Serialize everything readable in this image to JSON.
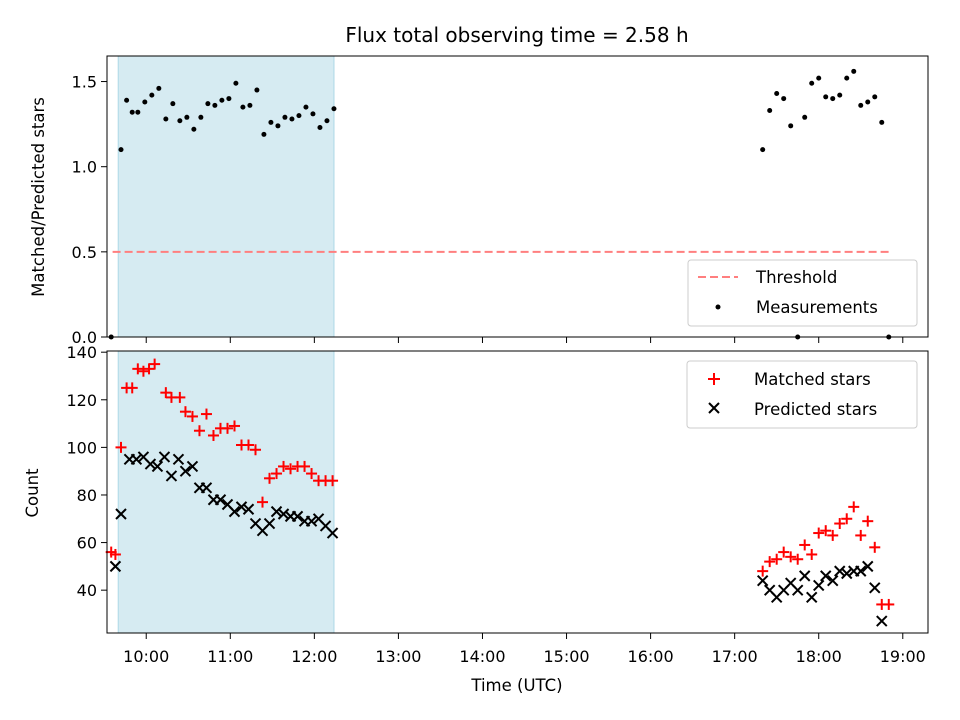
{
  "chart_data": [
    {
      "type": "scatter",
      "title": "Flux total observing time = 2.58 h",
      "xlabel": "",
      "ylabel": "Matched/Predicted stars",
      "xlim": [
        "09:32",
        "19:18"
      ],
      "ylim": [
        0,
        1.65
      ],
      "yticks": [
        {
          "value": 0.0,
          "label": "0.0"
        },
        {
          "value": 0.5,
          "label": "0.5"
        },
        {
          "value": 1.0,
          "label": "1.0"
        },
        {
          "value": 1.5,
          "label": "1.5"
        }
      ],
      "x_tick_marks": [
        "10:00",
        "11:00",
        "12:00",
        "13:00",
        "14:00",
        "15:00",
        "16:00",
        "17:00",
        "18:00",
        "19:00"
      ],
      "shaded_region": {
        "x0": "09:40",
        "x1": "12:14",
        "color": "#add8e6"
      },
      "legend_position": "lower-right",
      "grid": false,
      "series": [
        {
          "name": "Threshold",
          "style": "dashed-line",
          "color": "#ff7f7f",
          "points": [
            [
              "09:36",
              0.5
            ],
            [
              "18:50",
              0.5
            ]
          ]
        },
        {
          "name": "Measurements",
          "style": "dot",
          "color": "#000000",
          "points": [
            [
              "09:35",
              0.0
            ],
            [
              "09:42",
              1.1
            ],
            [
              "09:46",
              1.39
            ],
            [
              "09:50",
              1.32
            ],
            [
              "09:54",
              1.32
            ],
            [
              "09:59",
              1.38
            ],
            [
              "10:04",
              1.42
            ],
            [
              "10:09",
              1.46
            ],
            [
              "10:14",
              1.28
            ],
            [
              "10:19",
              1.37
            ],
            [
              "10:24",
              1.27
            ],
            [
              "10:29",
              1.29
            ],
            [
              "10:34",
              1.22
            ],
            [
              "10:39",
              1.29
            ],
            [
              "10:44",
              1.37
            ],
            [
              "10:49",
              1.36
            ],
            [
              "10:54",
              1.39
            ],
            [
              "10:59",
              1.4
            ],
            [
              "11:04",
              1.49
            ],
            [
              "11:09",
              1.35
            ],
            [
              "11:14",
              1.36
            ],
            [
              "11:19",
              1.45
            ],
            [
              "11:24",
              1.19
            ],
            [
              "11:29",
              1.26
            ],
            [
              "11:34",
              1.24
            ],
            [
              "11:39",
              1.29
            ],
            [
              "11:44",
              1.28
            ],
            [
              "11:49",
              1.3
            ],
            [
              "11:54",
              1.35
            ],
            [
              "11:59",
              1.31
            ],
            [
              "12:04",
              1.23
            ],
            [
              "12:09",
              1.27
            ],
            [
              "12:14",
              1.34
            ],
            [
              "17:20",
              1.1
            ],
            [
              "17:25",
              1.33
            ],
            [
              "17:30",
              1.43
            ],
            [
              "17:35",
              1.4
            ],
            [
              "17:40",
              1.24
            ],
            [
              "17:45",
              0.0
            ],
            [
              "17:50",
              1.29
            ],
            [
              "17:55",
              1.49
            ],
            [
              "18:00",
              1.52
            ],
            [
              "18:05",
              1.41
            ],
            [
              "18:10",
              1.4
            ],
            [
              "18:15",
              1.42
            ],
            [
              "18:20",
              1.52
            ],
            [
              "18:25",
              1.56
            ],
            [
              "18:30",
              1.36
            ],
            [
              "18:35",
              1.38
            ],
            [
              "18:40",
              1.41
            ],
            [
              "18:45",
              1.26
            ],
            [
              "18:50",
              0.0
            ]
          ]
        }
      ]
    },
    {
      "type": "scatter",
      "title": "",
      "xlabel": "Time (UTC)",
      "ylabel": "Count",
      "xlim": [
        "09:32",
        "19:18"
      ],
      "ylim": [
        22,
        140.5
      ],
      "yticks": [
        {
          "value": 40,
          "label": "40"
        },
        {
          "value": 60,
          "label": "60"
        },
        {
          "value": 80,
          "label": "80"
        },
        {
          "value": 100,
          "label": "100"
        },
        {
          "value": 120,
          "label": "120"
        },
        {
          "value": 140,
          "label": "140"
        }
      ],
      "xticks": [
        {
          "value": "10:00",
          "label": "10:00"
        },
        {
          "value": "11:00",
          "label": "11:00"
        },
        {
          "value": "12:00",
          "label": "12:00"
        },
        {
          "value": "13:00",
          "label": "13:00"
        },
        {
          "value": "14:00",
          "label": "14:00"
        },
        {
          "value": "15:00",
          "label": "15:00"
        },
        {
          "value": "16:00",
          "label": "16:00"
        },
        {
          "value": "17:00",
          "label": "17:00"
        },
        {
          "value": "18:00",
          "label": "18:00"
        },
        {
          "value": "19:00",
          "label": "19:00"
        }
      ],
      "shaded_region": {
        "x0": "09:40",
        "x1": "12:14",
        "color": "#add8e6"
      },
      "legend_position": "upper-right",
      "grid": false,
      "series": [
        {
          "name": "Matched stars",
          "style": "plus",
          "color": "#ff0000",
          "points": [
            [
              "09:35",
              56
            ],
            [
              "09:38",
              55
            ],
            [
              "09:42",
              100
            ],
            [
              "09:46",
              125
            ],
            [
              "09:50",
              125
            ],
            [
              "09:54",
              133
            ],
            [
              "09:58",
              132
            ],
            [
              "10:02",
              133
            ],
            [
              "10:06",
              135
            ],
            [
              "10:14",
              123
            ],
            [
              "10:18",
              121
            ],
            [
              "10:24",
              121
            ],
            [
              "10:28",
              115
            ],
            [
              "10:33",
              113
            ],
            [
              "10:38",
              107
            ],
            [
              "10:43",
              114
            ],
            [
              "10:48",
              105
            ],
            [
              "10:53",
              108
            ],
            [
              "10:58",
              108
            ],
            [
              "11:03",
              109
            ],
            [
              "11:08",
              101
            ],
            [
              "11:13",
              101
            ],
            [
              "11:18",
              99
            ],
            [
              "11:23",
              77
            ],
            [
              "11:28",
              87
            ],
            [
              "11:33",
              89
            ],
            [
              "11:38",
              92
            ],
            [
              "11:43",
              91
            ],
            [
              "11:48",
              92
            ],
            [
              "11:53",
              92
            ],
            [
              "11:58",
              89
            ],
            [
              "12:03",
              86
            ],
            [
              "12:08",
              86
            ],
            [
              "12:13",
              86
            ],
            [
              "17:20",
              48
            ],
            [
              "17:25",
              52
            ],
            [
              "17:30",
              53
            ],
            [
              "17:35",
              56
            ],
            [
              "17:40",
              54
            ],
            [
              "17:45",
              53
            ],
            [
              "17:50",
              59
            ],
            [
              "17:55",
              55
            ],
            [
              "18:00",
              64
            ],
            [
              "18:05",
              65
            ],
            [
              "18:10",
              63
            ],
            [
              "18:15",
              68
            ],
            [
              "18:20",
              70
            ],
            [
              "18:25",
              75
            ],
            [
              "18:30",
              63
            ],
            [
              "18:35",
              69
            ],
            [
              "18:40",
              58
            ],
            [
              "18:45",
              34
            ],
            [
              "18:50",
              34
            ]
          ]
        },
        {
          "name": "Predicted stars",
          "style": "x",
          "color": "#000000",
          "points": [
            [
              "09:38",
              50
            ],
            [
              "09:42",
              72
            ],
            [
              "09:48",
              95
            ],
            [
              "09:53",
              95
            ],
            [
              "09:58",
              96
            ],
            [
              "10:03",
              93
            ],
            [
              "10:08",
              92
            ],
            [
              "10:13",
              96
            ],
            [
              "10:18",
              88
            ],
            [
              "10:23",
              95
            ],
            [
              "10:28",
              90
            ],
            [
              "10:33",
              92
            ],
            [
              "10:38",
              83
            ],
            [
              "10:43",
              83
            ],
            [
              "10:48",
              78
            ],
            [
              "10:53",
              78
            ],
            [
              "10:58",
              76
            ],
            [
              "11:03",
              73
            ],
            [
              "11:08",
              75
            ],
            [
              "11:13",
              74
            ],
            [
              "11:18",
              68
            ],
            [
              "11:23",
              65
            ],
            [
              "11:28",
              68
            ],
            [
              "11:33",
              73
            ],
            [
              "11:38",
              72
            ],
            [
              "11:43",
              71
            ],
            [
              "11:48",
              71
            ],
            [
              "11:53",
              69
            ],
            [
              "11:58",
              69
            ],
            [
              "12:03",
              70
            ],
            [
              "12:08",
              67
            ],
            [
              "12:13",
              64
            ],
            [
              "17:20",
              44
            ],
            [
              "17:25",
              40
            ],
            [
              "17:30",
              37
            ],
            [
              "17:35",
              40
            ],
            [
              "17:40",
              43
            ],
            [
              "17:45",
              40
            ],
            [
              "17:50",
              46
            ],
            [
              "17:55",
              37
            ],
            [
              "18:00",
              42
            ],
            [
              "18:05",
              46
            ],
            [
              "18:10",
              44
            ],
            [
              "18:15",
              48
            ],
            [
              "18:20",
              47
            ],
            [
              "18:25",
              48
            ],
            [
              "18:30",
              48
            ],
            [
              "18:35",
              50
            ],
            [
              "18:40",
              41
            ],
            [
              "18:45",
              27
            ]
          ]
        }
      ]
    }
  ]
}
